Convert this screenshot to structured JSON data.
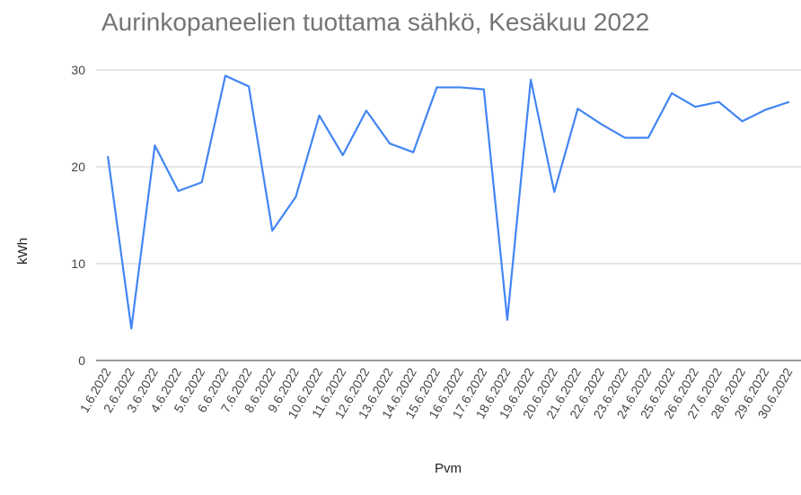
{
  "chart_data": {
    "type": "line",
    "title": "Aurinkopaneelien tuottama sähkö, Kesäkuu 2022",
    "x_label": "Pvm",
    "y_label": "kWh",
    "categories": [
      "1.6.2022",
      "2.6.2022",
      "3.6.2022",
      "4.6.2022",
      "5.6.2022",
      "6.6.2022",
      "7.6.2022",
      "8.6.2022",
      "9.6.2022",
      "10.6.2022",
      "11.6.2022",
      "12.6.2022",
      "13.6.2022",
      "14.6.2022",
      "15.6.2022",
      "16.6.2022",
      "17.6.2022",
      "18.6.2022",
      "19.6.2022",
      "20.6.2022",
      "21.6.2022",
      "22.6.2022",
      "23.6.2022",
      "24.6.2022",
      "25.6.2022",
      "26.6.2022",
      "27.6.2022",
      "28.6.2022",
      "29.6.2022",
      "30.6.2022"
    ],
    "values": [
      21.1,
      3.3,
      22.2,
      17.5,
      18.4,
      29.4,
      28.3,
      13.4,
      16.9,
      25.3,
      21.2,
      25.8,
      22.4,
      21.5,
      28.2,
      28.2,
      28.0,
      4.2,
      29.0,
      17.4,
      26.0,
      24.4,
      23.0,
      23.0,
      27.6,
      26.2,
      26.7,
      24.7,
      25.9,
      26.7
    ],
    "color": "#4285f4",
    "ylim": [
      0,
      30
    ],
    "yticks": [
      0,
      10,
      20,
      30
    ],
    "grid": true
  }
}
